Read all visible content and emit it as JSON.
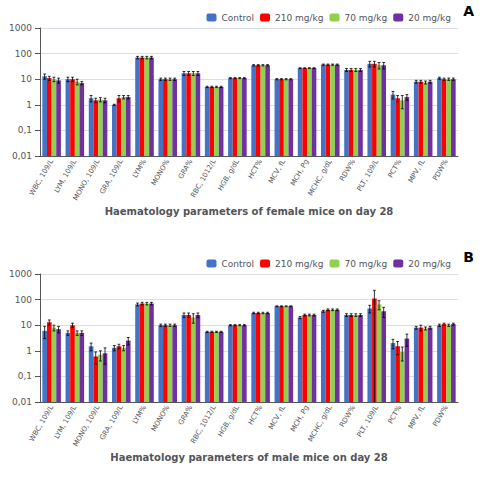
{
  "chart_data": [
    {
      "type": "bar",
      "xlabel": "Haematology parameters of female mice on day 28",
      "annotations": [
        "A"
      ],
      "categories": [
        "WBC, 109/L",
        "LYM, 109/L",
        "MONO, 109/L",
        "GRA, 109/L",
        "LYM%",
        "MONO%",
        "GRA%",
        "RBC, 1012/L",
        "HGB, g/dL",
        "HCT%",
        "MCV, fL",
        "MCH, Pg",
        "MCHC, g/dL",
        "RDW%",
        "PLT, 109/L",
        "PCT%",
        "MPV, fL",
        "PDW%"
      ],
      "series": [
        {
          "name": "Control",
          "color": "#4472C4",
          "values": [
            13,
            10,
            1.8,
            1.0,
            70,
            10,
            17,
            5.0,
            11,
            35,
            10,
            27,
            37,
            23,
            40,
            2.5,
            8,
            11
          ],
          "errors": [
            3,
            2,
            0.5,
            0.05,
            8,
            1,
            3,
            0.3,
            0.5,
            2,
            0.5,
            1,
            2,
            3,
            10,
            0.8,
            1,
            1
          ]
        },
        {
          "name": "210 mg/kg",
          "color": "#FF0000",
          "values": [
            11,
            10,
            1.5,
            1.8,
            70,
            10,
            17,
            5.0,
            11,
            35,
            10,
            27,
            37,
            23,
            40,
            1.8,
            8,
            10
          ],
          "errors": [
            2,
            2,
            0.3,
            0.5,
            8,
            1,
            3,
            0.3,
            0.5,
            2,
            0.5,
            1,
            2,
            3,
            10,
            0.5,
            1,
            1
          ]
        },
        {
          "name": "70 mg/kg",
          "color": "#92D050",
          "values": [
            10,
            8,
            1.6,
            2.0,
            70,
            10,
            17,
            5.0,
            11,
            35,
            10,
            27,
            37,
            23,
            35,
            1.5,
            7.5,
            10
          ],
          "errors": [
            2,
            2,
            0.3,
            0.3,
            8,
            1,
            3,
            0.3,
            0.5,
            2,
            0.5,
            1,
            2,
            3,
            10,
            0.8,
            1,
            1
          ]
        },
        {
          "name": "20 mg/kg",
          "color": "#7030A0",
          "values": [
            9,
            7,
            1.5,
            2.0,
            70,
            10,
            17,
            5.0,
            11,
            35,
            10,
            27,
            37,
            23,
            35,
            2.0,
            8,
            10
          ],
          "errors": [
            2,
            1,
            0.3,
            0.3,
            8,
            1,
            3,
            0.3,
            0.5,
            2,
            0.5,
            1,
            2,
            3,
            10,
            0.5,
            1,
            1
          ]
        }
      ],
      "ylim": [
        0.01,
        1000
      ],
      "yticks": [
        {
          "value": 0.01,
          "label": "0,01"
        },
        {
          "value": 0.1,
          "label": "0,1"
        },
        1,
        10,
        100,
        1000
      ],
      "log": "y",
      "grid": true,
      "legend": "upper right"
    },
    {
      "type": "bar",
      "xlabel": "Haematology parameters of male mice on day 28",
      "annotations": [
        "B"
      ],
      "categories": [
        "WBC, 109/L",
        "LYM, 109/L",
        "MONO, 109/L",
        "GRA, 109/L",
        "LYM%",
        "MONO%",
        "GRA%",
        "RBC, 1012/L",
        "HGB, g/dL",
        "HCT%",
        "MCV, fL",
        "MCH, Pg",
        "MCHC, g/dL",
        "RDW%",
        "PLT, 109/L",
        "PCT%",
        "MPV, fL",
        "PDW%"
      ],
      "series": [
        {
          "name": "Control",
          "color": "#4472C4",
          "values": [
            6,
            5,
            1.5,
            1.3,
            65,
            10,
            25,
            5.5,
            10,
            30,
            55,
            20,
            35,
            25,
            45,
            2.0,
            8,
            10
          ],
          "errors": [
            3,
            1,
            0.5,
            0.3,
            8,
            1,
            5,
            0.3,
            0.5,
            2,
            2,
            2,
            3,
            3,
            15,
            0.8,
            1,
            1
          ]
        },
        {
          "name": "210 mg/kg",
          "color": "#FF0000",
          "values": [
            13,
            10,
            0.6,
            1.5,
            70,
            10,
            25,
            5.5,
            10,
            30,
            55,
            25,
            40,
            25,
            110,
            1.5,
            8,
            11
          ],
          "errors": [
            3,
            2,
            0.3,
            0.3,
            8,
            1,
            5,
            0.3,
            0.5,
            2,
            2,
            2,
            3,
            3,
            120,
            0.8,
            2,
            1
          ]
        },
        {
          "name": "70 mg/kg",
          "color": "#92D050",
          "values": [
            8,
            5,
            0.7,
            1.3,
            70,
            10,
            20,
            5.5,
            10,
            30,
            55,
            25,
            40,
            25,
            65,
            0.9,
            7.5,
            10
          ],
          "errors": [
            2,
            1,
            0.3,
            0.3,
            8,
            1,
            8,
            0.3,
            0.5,
            2,
            2,
            2,
            3,
            3,
            25,
            0.5,
            1,
            1
          ]
        },
        {
          "name": "20 mg/kg",
          "color": "#7030A0",
          "values": [
            7,
            5,
            0.8,
            2.5,
            70,
            10,
            25,
            5.5,
            10,
            30,
            55,
            25,
            40,
            25,
            35,
            3.0,
            8,
            11
          ],
          "errors": [
            2,
            1,
            0.5,
            0.8,
            8,
            1,
            5,
            0.3,
            0.5,
            2,
            2,
            2,
            3,
            3,
            15,
            1.5,
            1,
            1
          ]
        }
      ],
      "ylim": [
        0.01,
        1000
      ],
      "yticks": [
        {
          "value": 0.01,
          "label": "0,01"
        },
        {
          "value": 0.1,
          "label": "0,1"
        },
        1,
        10,
        100,
        1000
      ],
      "log": "y",
      "grid": true,
      "legend": "upper right"
    }
  ]
}
